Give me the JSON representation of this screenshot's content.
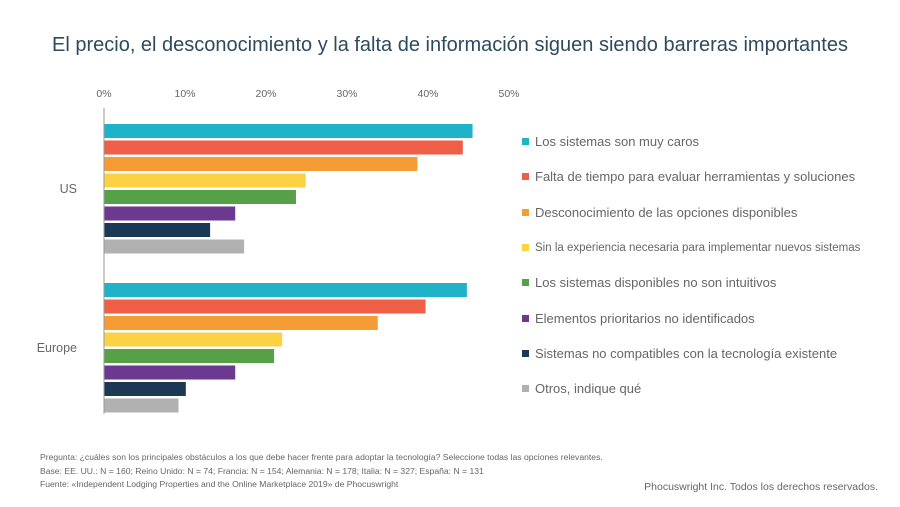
{
  "title": "El precio, el desconocimiento y la falta de información siguen siendo barreras importantes",
  "chart_data": {
    "type": "bar",
    "orientation": "horizontal",
    "title": "El precio, el desconocimiento y la falta de información siguen siendo barreras importantes",
    "categories": [
      "US",
      "Europe"
    ],
    "x_ticks": [
      "0%",
      "10%",
      "20%",
      "30%",
      "40%",
      "50%"
    ],
    "xlim": [
      0,
      50
    ],
    "grid": false,
    "legend_position": "right",
    "series": [
      {
        "name": "Los sistemas son muy caros",
        "color": "#1fb3c9",
        "values": [
          45.5,
          44.8
        ]
      },
      {
        "name": "Falta de tiempo para evaluar herramientas y soluciones",
        "color": "#ef5e47",
        "values": [
          44.3,
          39.7
        ]
      },
      {
        "name": "Desconocimiento de las opciones disponibles",
        "color": "#f59c34",
        "values": [
          38.7,
          33.8
        ]
      },
      {
        "name": "Sin la experiencia necesaria para implementar nuevos sistemas",
        "color": "#fcd144",
        "values": [
          24.9,
          22.0
        ]
      },
      {
        "name": "Los sistemas disponibles no son intuitivos",
        "color": "#56a047",
        "values": [
          23.7,
          21.0
        ]
      },
      {
        "name": "Elementos prioritarios no identificados",
        "color": "#6b3a90",
        "values": [
          16.2,
          16.2
        ]
      },
      {
        "name": "Sistemas no compatibles con la tecnología existente",
        "color": "#1b3954",
        "values": [
          13.1,
          10.1
        ]
      },
      {
        "name": "Otros, indique qué",
        "color": "#b1b1b1",
        "values": [
          17.3,
          9.2
        ]
      }
    ]
  },
  "notes": [
    "Pregunta: ¿cuáles son los principales obstáculos a los que debe hacer frente para adoptar la tecnología? Seleccione todas las opciones relevantes.",
    "Base: EE. UU.: N = 160; Reino Unido: N = 74; Francia: N = 154; Alemania: N = 178; Italia: N = 327; España: N = 131",
    "Fuente: «Independent Lodging Properties and the Online Marketplace 2019» de Phocuswright"
  ],
  "copyright": "Phocuswright Inc. Todos los derechos reservados."
}
